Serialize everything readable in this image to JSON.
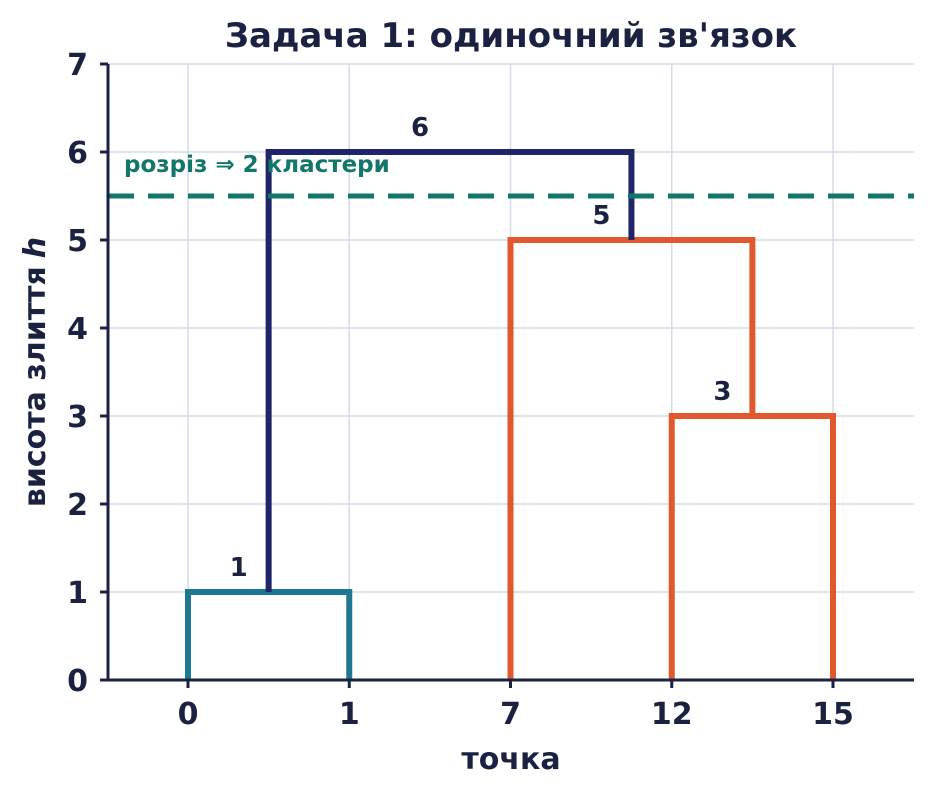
{
  "chart_data": {
    "type": "dendrogram",
    "title": "Задача 1: одиночний зв'язок",
    "xlabel": "точка",
    "ylabel": "висота злиття",
    "ylabel_var": "h",
    "categories": [
      "0",
      "1",
      "7",
      "12",
      "15"
    ],
    "ylim": [
      0,
      7
    ],
    "yticks": [
      0,
      1,
      2,
      3,
      4,
      5,
      6,
      7
    ],
    "grid": true,
    "merges": [
      {
        "left": "0",
        "right": "1",
        "height": 1,
        "label": "1",
        "color": "#1f7891"
      },
      {
        "left": "12",
        "right": "15",
        "height": 3,
        "label": "3",
        "color": "#e0582c"
      },
      {
        "left": "7",
        "right": "{12,15}",
        "height": 5,
        "label": "5",
        "color": "#e0582c"
      },
      {
        "left": "{0,1}",
        "right": "{7,12,15}",
        "height": 6,
        "label": "6",
        "color": "#1f2566"
      }
    ],
    "cut": {
      "height": 5.5,
      "label": "розріз ⇒ 2 кластери",
      "color": "#12766a"
    }
  }
}
